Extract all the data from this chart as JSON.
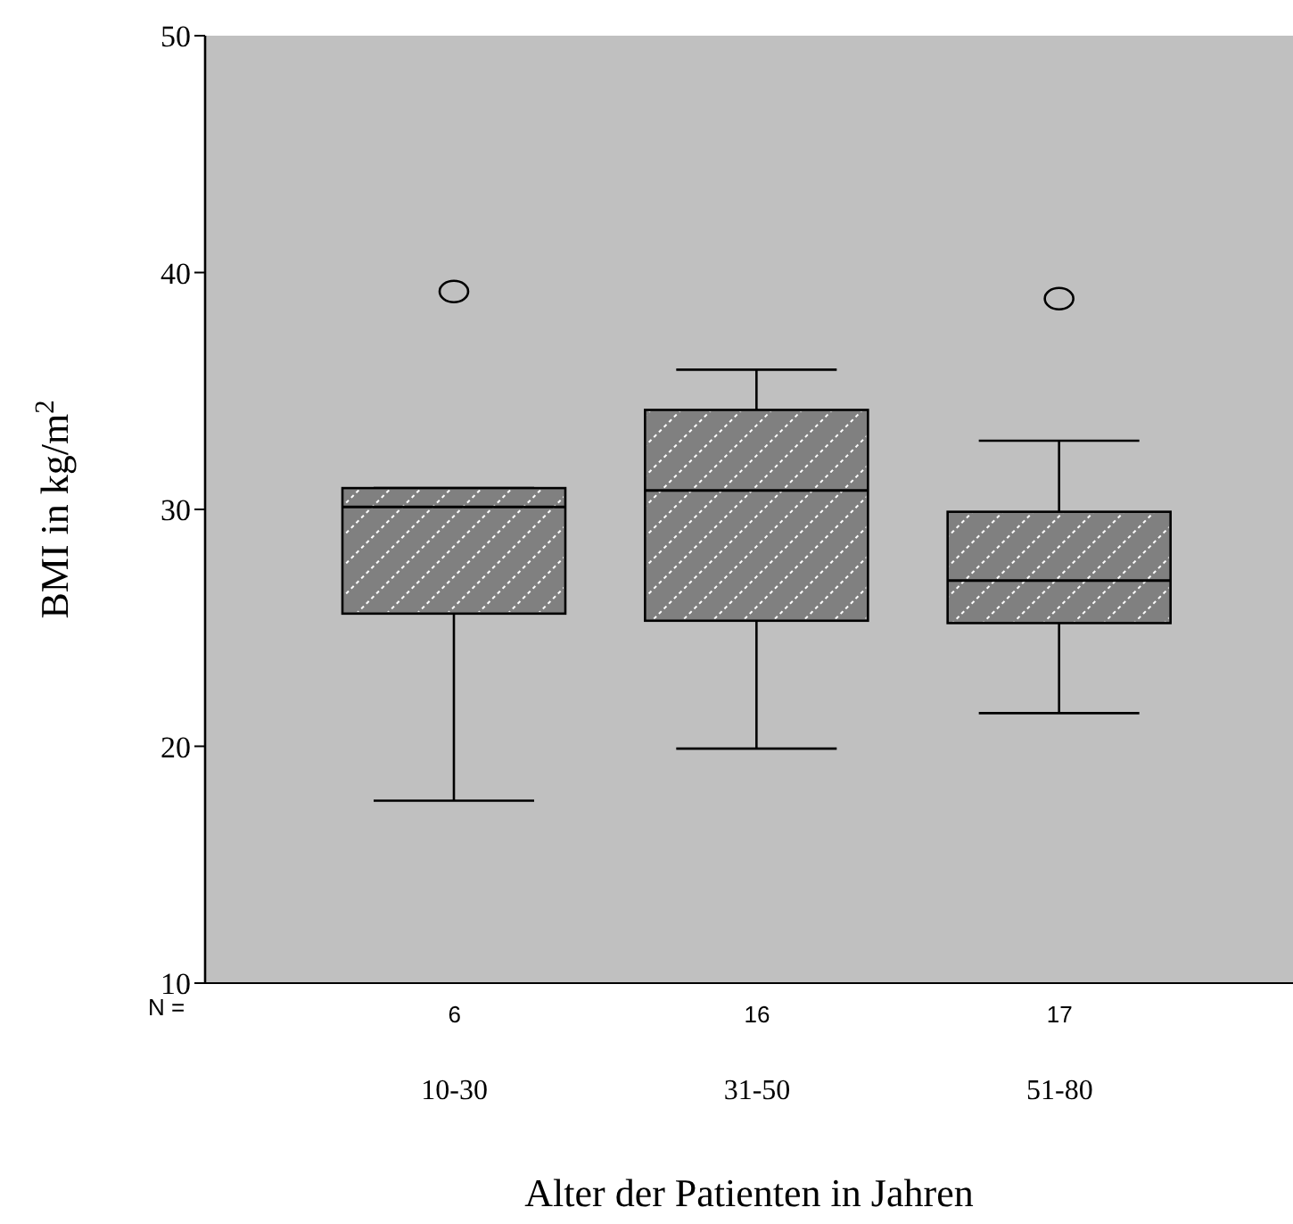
{
  "chart_data": {
    "type": "box",
    "xlabel": "Alter der Patienten in Jahren",
    "ylabel": "BMI in kg/m$^{2}$",
    "categories": [
      "10-30",
      "31-50",
      "51-80"
    ],
    "color": "#808080",
    "boxes": [
      {
        "low": 17.7,
        "q1": 25.6,
        "median": 30.1,
        "q3": 30.9,
        "high": 30.9,
        "outliers": [
          39.2
        ]
      },
      {
        "low": 19.9,
        "q1": 25.3,
        "median": 30.8,
        "q3": 34.2,
        "high": 35.9
      },
      {
        "low": 21.4,
        "q1": 25.2,
        "median": 27.0,
        "q3": 29.9,
        "high": 32.9,
        "outliers": [
          38.9
        ]
      }
    ],
    "ylim": [
      10,
      50
    ],
    "yticks": [
      10,
      20,
      30,
      40,
      50
    ],
    "annotations": [
      "N =",
      "6",
      "16",
      "17"
    ]
  }
}
